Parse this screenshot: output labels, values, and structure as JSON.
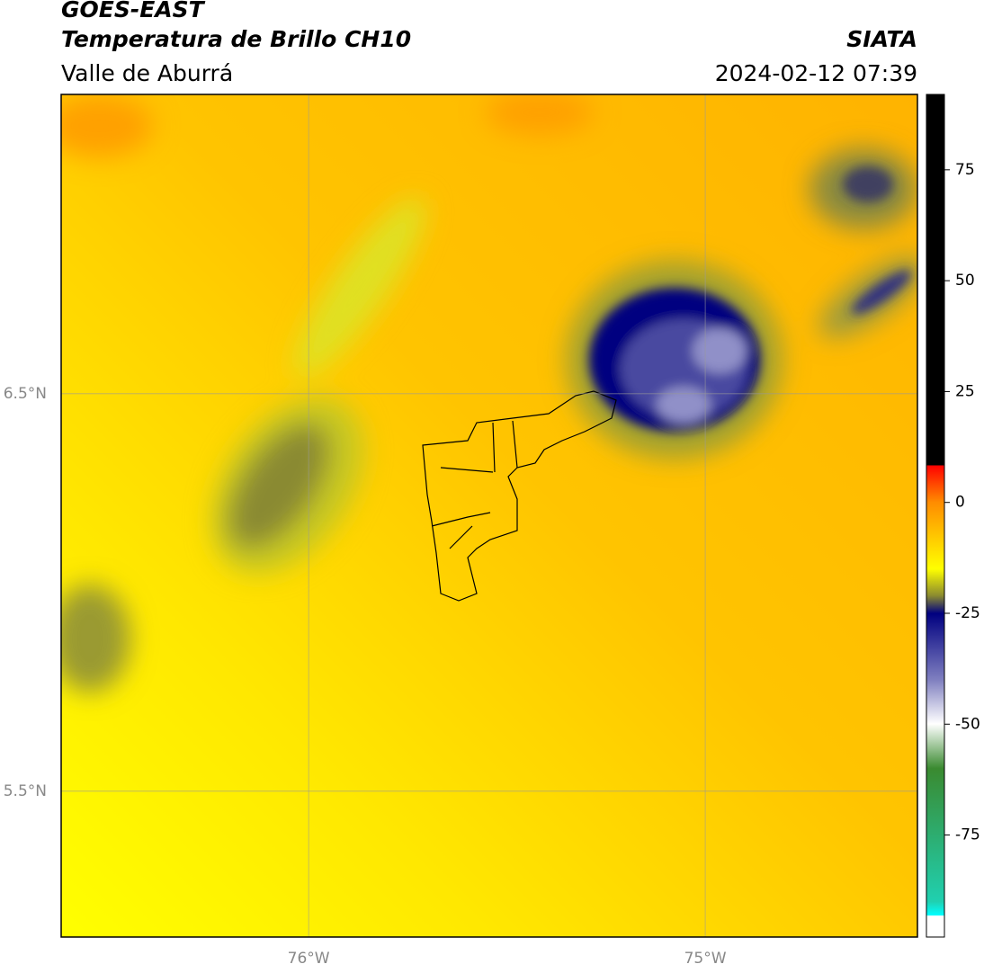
{
  "header": {
    "title": "GOES-EAST",
    "subtitle": "Temperatura de Brillo CH10",
    "source": "SIATA",
    "region": "Valle de Aburrá",
    "datetime": "2024-02-12 07:39"
  },
  "map": {
    "xlim": [
      -76.624,
      -74.465
    ],
    "ylim": [
      5.133,
      7.253
    ],
    "xticks": [
      {
        "value": -76,
        "label": "76°W"
      },
      {
        "value": -75,
        "label": "75°W"
      }
    ],
    "yticks": [
      {
        "value": 6.5,
        "label": "6.5°N"
      },
      {
        "value": 5.5,
        "label": "5.5°N"
      }
    ]
  },
  "colorbar": {
    "lim": [
      -98,
      92
    ],
    "ticks": [
      75,
      50,
      25,
      0,
      -25,
      -50,
      -75
    ]
  }
}
